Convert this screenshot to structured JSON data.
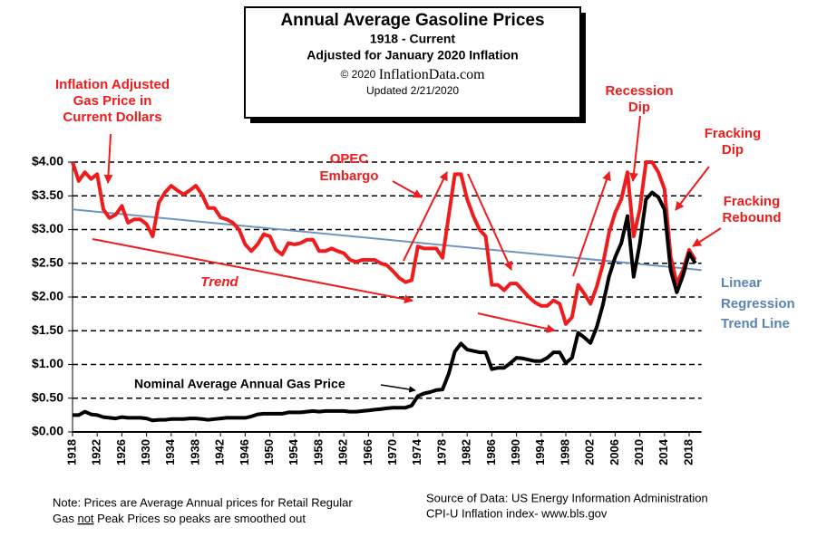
{
  "chart_data": {
    "type": "line",
    "title": "Annual Average Gasoline Prices",
    "subtitle": [
      "1918 - Current",
      "Adjusted for January 2020 Inflation"
    ],
    "copyright": [
      "© 2020 ",
      "InflationData.com"
    ],
    "updated": "Updated  2/21/2020",
    "xlim": [
      1918,
      2020
    ],
    "ylim": [
      0,
      4
    ],
    "grid": true,
    "xticks": [
      1918,
      1922,
      1926,
      1930,
      1934,
      1938,
      1942,
      1946,
      1950,
      1954,
      1958,
      1962,
      1966,
      1970,
      1974,
      1978,
      1982,
      1986,
      1990,
      1994,
      1998,
      2002,
      2006,
      2010,
      2014,
      2018
    ],
    "yticks": [
      {
        "value": 0,
        "label": "$0.00"
      },
      {
        "value": 0.5,
        "label": "$0.50"
      },
      {
        "value": 1,
        "label": "$1.00"
      },
      {
        "value": 1.5,
        "label": "$1.50"
      },
      {
        "value": 2,
        "label": "$2.00"
      },
      {
        "value": 2.5,
        "label": "$2.50"
      },
      {
        "value": 3,
        "label": "$3.00"
      },
      {
        "value": 3.5,
        "label": "$3.50"
      },
      {
        "value": 4,
        "label": "$4.00"
      }
    ],
    "x": [
      1918,
      1919,
      1920,
      1921,
      1922,
      1923,
      1924,
      1925,
      1926,
      1927,
      1928,
      1929,
      1930,
      1931,
      1932,
      1933,
      1934,
      1935,
      1936,
      1937,
      1938,
      1939,
      1940,
      1941,
      1942,
      1943,
      1944,
      1945,
      1946,
      1947,
      1948,
      1949,
      1950,
      1951,
      1952,
      1953,
      1954,
      1955,
      1956,
      1957,
      1958,
      1959,
      1960,
      1961,
      1962,
      1963,
      1964,
      1965,
      1966,
      1967,
      1968,
      1969,
      1970,
      1971,
      1972,
      1973,
      1974,
      1975,
      1976,
      1977,
      1978,
      1979,
      1980,
      1981,
      1982,
      1983,
      1984,
      1985,
      1986,
      1987,
      1988,
      1989,
      1990,
      1991,
      1992,
      1993,
      1994,
      1995,
      1996,
      1997,
      1998,
      1999,
      2000,
      2001,
      2002,
      2003,
      2004,
      2005,
      2006,
      2007,
      2008,
      2009,
      2010,
      2011,
      2012,
      2013,
      2014,
      2015,
      2016,
      2017,
      2018,
      2019
    ],
    "series": [
      {
        "name": [
          "Inflation Adjusted",
          "Gas Price in",
          "Current Dollars"
        ],
        "color": "#ee1c1c",
        "values": [
          4.0,
          3.72,
          3.85,
          3.75,
          3.82,
          3.3,
          3.17,
          3.22,
          3.35,
          3.1,
          3.15,
          3.15,
          3.08,
          2.9,
          3.4,
          3.55,
          3.65,
          3.58,
          3.52,
          3.58,
          3.65,
          3.52,
          3.32,
          3.32,
          3.18,
          3.15,
          3.1,
          3.0,
          2.78,
          2.68,
          2.78,
          2.93,
          2.9,
          2.7,
          2.63,
          2.8,
          2.78,
          2.8,
          2.85,
          2.85,
          2.68,
          2.68,
          2.72,
          2.68,
          2.65,
          2.55,
          2.52,
          2.55,
          2.55,
          2.55,
          2.5,
          2.47,
          2.38,
          2.28,
          2.22,
          2.25,
          2.75,
          2.72,
          2.72,
          2.72,
          2.58,
          3.2,
          3.82,
          3.82,
          3.45,
          3.2,
          3.0,
          2.9,
          2.18,
          2.18,
          2.1,
          2.2,
          2.2,
          2.1,
          2.0,
          1.92,
          1.87,
          1.87,
          1.95,
          1.9,
          1.6,
          1.7,
          2.18,
          2.05,
          1.9,
          2.15,
          2.48,
          2.95,
          3.25,
          3.45,
          3.85,
          2.9,
          3.3,
          4.0,
          4.0,
          3.85,
          3.6,
          2.6,
          2.2,
          2.4,
          2.7,
          2.55
        ]
      },
      {
        "name": "Nominal Average Annual Gas Price",
        "color": "#000000",
        "values": [
          0.25,
          0.25,
          0.3,
          0.26,
          0.25,
          0.22,
          0.21,
          0.2,
          0.22,
          0.21,
          0.21,
          0.21,
          0.2,
          0.17,
          0.18,
          0.18,
          0.19,
          0.19,
          0.19,
          0.2,
          0.2,
          0.19,
          0.18,
          0.19,
          0.2,
          0.21,
          0.21,
          0.21,
          0.21,
          0.23,
          0.26,
          0.27,
          0.27,
          0.27,
          0.27,
          0.29,
          0.29,
          0.29,
          0.3,
          0.31,
          0.3,
          0.31,
          0.31,
          0.31,
          0.31,
          0.3,
          0.3,
          0.31,
          0.32,
          0.33,
          0.34,
          0.35,
          0.36,
          0.36,
          0.36,
          0.39,
          0.53,
          0.57,
          0.59,
          0.62,
          0.63,
          0.86,
          1.19,
          1.31,
          1.22,
          1.2,
          1.18,
          1.18,
          0.93,
          0.95,
          0.95,
          1.02,
          1.1,
          1.09,
          1.07,
          1.05,
          1.05,
          1.1,
          1.18,
          1.18,
          1.02,
          1.1,
          1.47,
          1.4,
          1.32,
          1.55,
          1.88,
          2.3,
          2.59,
          2.8,
          3.2,
          2.3,
          2.79,
          3.45,
          3.55,
          3.48,
          3.3,
          2.4,
          2.07,
          2.32,
          2.65,
          2.5
        ]
      }
    ],
    "trend_line": {
      "name": [
        "Linear",
        "Regression",
        "Trend Line"
      ],
      "color": "#6e94c2",
      "x": [
        1918,
        2020
      ],
      "values": [
        3.3,
        2.4
      ]
    },
    "annotations": [
      {
        "lines": [
          "OPEC",
          "Embargo"
        ]
      },
      {
        "lines": [
          "Trend"
        ]
      },
      {
        "lines": [
          "Recession",
          "Dip"
        ]
      },
      {
        "lines": [
          "Fracking",
          "Dip"
        ]
      },
      {
        "lines": [
          "Fracking",
          "Rebound"
        ]
      }
    ],
    "note": [
      "Note: Prices are Average  Annual prices for Retail Regular",
      [
        "Gas ",
        "not",
        " Peak Prices so peaks are smoothed out"
      ]
    ],
    "source": [
      "Source of Data:  US Energy Information Administration",
      "CPI-U Inflation index-    www.bls.gov"
    ]
  }
}
